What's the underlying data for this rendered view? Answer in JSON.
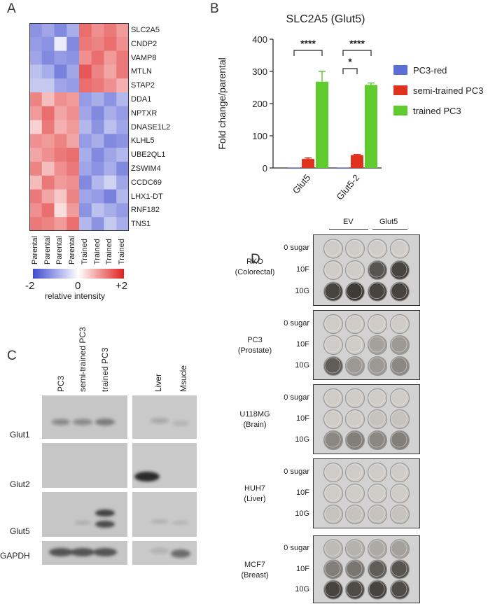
{
  "panels": {
    "a": "A",
    "b": "B",
    "c": "C",
    "d": "D"
  },
  "heatmap": {
    "genes": [
      "SLC2A5",
      "CNDP2",
      "VAMP8",
      "MTLN",
      "STAP2",
      "DDA1",
      "NPTXR",
      "DNASE1L2",
      "KLHL5",
      "UBE2QL1",
      "ZSWIM4",
      "CCDC69",
      "LHX1-DT",
      "RNF182",
      "TNS1"
    ],
    "columns": [
      "Parental",
      "Parental",
      "Parental",
      "Parental",
      "Trained",
      "Trained",
      "Trained",
      "Trained"
    ],
    "scale": {
      "min": "-2",
      "mid": "0",
      "max": "+2",
      "label": "relative intensity"
    },
    "values": [
      [
        -1.2,
        -1.0,
        -1.3,
        -0.9,
        1.3,
        1.0,
        1.2,
        0.9
      ],
      [
        -1.1,
        -1.2,
        -0.2,
        -1.3,
        1.2,
        1.1,
        1.3,
        1.0
      ],
      [
        -1.0,
        -1.3,
        -1.1,
        -1.2,
        1.0,
        1.3,
        0.9,
        1.2
      ],
      [
        -0.7,
        -0.9,
        -1.4,
        -1.0,
        1.5,
        1.1,
        0.8,
        1.2
      ],
      [
        -0.6,
        -0.6,
        -1.0,
        -1.1,
        1.3,
        1.2,
        1.0,
        0.7
      ],
      [
        1.1,
        0.6,
        1.0,
        0.9,
        -1.1,
        -0.9,
        -1.2,
        -0.8
      ],
      [
        0.9,
        1.3,
        0.8,
        1.0,
        -1.0,
        -1.3,
        -0.9,
        -1.1
      ],
      [
        0.4,
        1.2,
        0.7,
        0.9,
        -0.8,
        -1.2,
        -0.7,
        -1.0
      ],
      [
        1.0,
        0.9,
        1.1,
        0.8,
        -1.1,
        -0.9,
        -1.3,
        -1.2
      ],
      [
        0.8,
        1.0,
        1.2,
        1.3,
        -0.9,
        -1.3,
        -1.0,
        -0.8
      ],
      [
        1.1,
        0.6,
        1.0,
        1.2,
        -1.0,
        -1.2,
        -0.9,
        -1.3
      ],
      [
        0.6,
        1.2,
        0.9,
        1.0,
        -1.3,
        -0.8,
        -0.5,
        -1.0
      ],
      [
        1.2,
        0.8,
        0.5,
        1.1,
        -1.0,
        -1.1,
        -1.4,
        -0.8
      ],
      [
        1.0,
        1.3,
        0.3,
        0.9,
        -1.2,
        -0.7,
        -0.9,
        -1.1
      ],
      [
        1.2,
        1.1,
        0.9,
        1.3,
        -0.8,
        -1.2,
        -0.6,
        -0.9
      ]
    ]
  },
  "chart_data": {
    "type": "bar",
    "title": "SLC2A5 (Glut5)",
    "ylabel": "Fold change/parental",
    "xlabel": "",
    "categories": [
      "Glut5",
      "Glut5-2"
    ],
    "ylim": [
      0,
      400
    ],
    "yticks": [
      "0",
      "100",
      "200",
      "300",
      "400"
    ],
    "series": [
      {
        "name": "PC3-red",
        "color": "#5a6fd6",
        "values": [
          1,
          1
        ],
        "errors": [
          0,
          0
        ]
      },
      {
        "name": "semi-trained PC3",
        "color": "#e0301e",
        "values": [
          28,
          40
        ],
        "errors": [
          3,
          2
        ]
      },
      {
        "name": "trained PC3",
        "color": "#5fcb2e",
        "values": [
          268,
          258
        ],
        "errors": [
          32,
          6
        ]
      }
    ],
    "significance": [
      "****",
      "****",
      "*"
    ],
    "legend_position": "right"
  },
  "blot": {
    "lanes": [
      "PC3",
      "semi-trained PC3",
      "trained PC3",
      "Liver",
      "Msucle"
    ],
    "rows": [
      "Glut1",
      "Glut2",
      "Glut5",
      "GAPDH"
    ]
  },
  "plates": {
    "groups": [
      "EV",
      "Glut5"
    ],
    "well_rows": [
      "0 sugar",
      "10F",
      "10G"
    ],
    "cell_lines": [
      {
        "name": "RKO",
        "tissue": "(Colorectal)"
      },
      {
        "name": "PC3",
        "tissue": "(Prostate)"
      },
      {
        "name": "U118MG",
        "tissue": "(Brain)"
      },
      {
        "name": "HUH7",
        "tissue": "(Liver)"
      },
      {
        "name": "MCF7",
        "tissue": "(Breast)"
      }
    ],
    "intensity": [
      [
        [
          0.05,
          0.05,
          0.05,
          0.05
        ],
        [
          0.05,
          0.05,
          0.75,
          0.85
        ],
        [
          0.85,
          0.9,
          0.85,
          0.85
        ]
      ],
      [
        [
          0.05,
          0.05,
          0.05,
          0.05
        ],
        [
          0.05,
          0.05,
          0.3,
          0.35
        ],
        [
          0.7,
          0.35,
          0.35,
          0.45
        ]
      ],
      [
        [
          0.05,
          0.05,
          0.05,
          0.05
        ],
        [
          0.05,
          0.05,
          0.1,
          0.1
        ],
        [
          0.45,
          0.5,
          0.45,
          0.5
        ]
      ],
      [
        [
          0.05,
          0.05,
          0.05,
          0.05
        ],
        [
          0.05,
          0.05,
          0.05,
          0.05
        ],
        [
          0.1,
          0.1,
          0.1,
          0.1
        ]
      ],
      [
        [
          0.15,
          0.2,
          0.25,
          0.3
        ],
        [
          0.5,
          0.55,
          0.7,
          0.75
        ],
        [
          0.85,
          0.8,
          0.85,
          0.8
        ]
      ]
    ]
  }
}
